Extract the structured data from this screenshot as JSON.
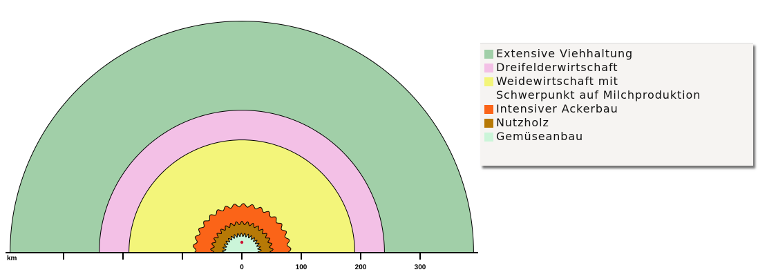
{
  "diagram": {
    "zones": [
      {
        "name": "Extensive Viehhaltung",
        "color": "#a1cfa8",
        "outer_km": 390
      },
      {
        "name": "Dreifelderwirtschaft",
        "color": "#f3c0e6",
        "outer_km": 240
      },
      {
        "name": "Weidewirtschaft mit\nSchwerpunkt auf Milchproduktion",
        "color": "#f3f57a",
        "outer_km": 190
      },
      {
        "name": "Intensiver Ackerbau",
        "color": "#fb6418",
        "outer_km": 80
      },
      {
        "name": "Nutzholz",
        "color": "#b77906",
        "outer_km": 50
      },
      {
        "name": "Gemüseanbau",
        "color": "#cbf5d9",
        "outer_km": 30
      }
    ],
    "center_marker_color": "#cc1133",
    "axis": {
      "unit_label": "km",
      "ticks": [
        {
          "value": -300,
          "label": ""
        },
        {
          "value": -200,
          "label": ""
        },
        {
          "value": -100,
          "label": ""
        },
        {
          "value": 0,
          "label": "0"
        },
        {
          "value": 100,
          "label": "100"
        },
        {
          "value": 200,
          "label": "200"
        },
        {
          "value": 300,
          "label": "300"
        }
      ]
    }
  },
  "legend": {
    "items": [
      {
        "label": "Extensive Viehhaltung",
        "color": "#a1cfa8"
      },
      {
        "label": "Dreifelderwirtschaft",
        "color": "#f3c0e6"
      },
      {
        "label": "Weidewirtschaft mit\nSchwerpunkt auf Milchproduktion",
        "color": "#f3f57a"
      },
      {
        "label": "Intensiver Ackerbau",
        "color": "#fb6418"
      },
      {
        "label": "Nutzholz",
        "color": "#b77906"
      },
      {
        "label": "Gemüseanbau",
        "color": "#cbf5d9"
      }
    ]
  }
}
